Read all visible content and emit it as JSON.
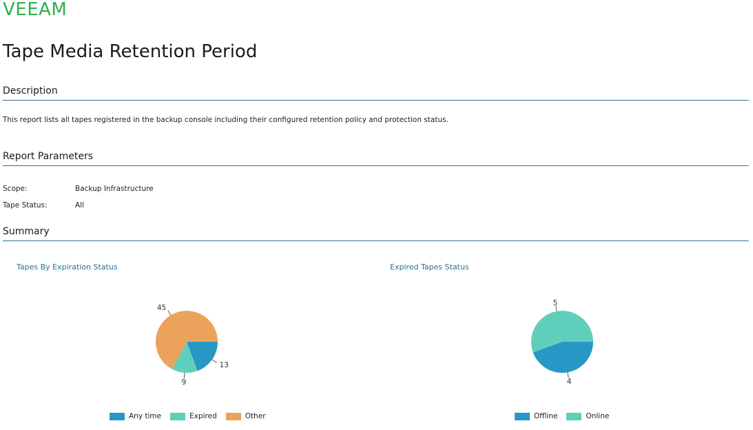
{
  "brand": {
    "logo_text": "VEEAM",
    "logo_color": "#2bb24c"
  },
  "report": {
    "title": "Tape Media Retention Period"
  },
  "sections": {
    "description": {
      "heading": "Description",
      "text": "This report lists all tapes registered in the backup console including their configured retention policy and protection status."
    },
    "parameters": {
      "heading": "Report Parameters",
      "items": [
        {
          "name": "Scope:",
          "value": "Backup Infrastructure"
        },
        {
          "name": "Tape Status:",
          "value": "All"
        }
      ]
    },
    "summary": {
      "heading": "Summary"
    }
  },
  "colors": {
    "anytime": "#2797c6",
    "expired": "#5fcfbc",
    "other": "#eba25a",
    "offline": "#2797c6",
    "online": "#5fcfbc"
  },
  "chart_data": [
    {
      "type": "pie",
      "title": "Tapes By Expiration Status",
      "slices": [
        {
          "label": "Any time",
          "value": 13,
          "color": "#2797c6"
        },
        {
          "label": "Expired",
          "value": 9,
          "color": "#5fcfbc"
        },
        {
          "label": "Other",
          "value": 45,
          "color": "#eba25a"
        }
      ],
      "legend": [
        "Any time",
        "Expired",
        "Other"
      ],
      "legend_placement": "bottom",
      "data_labels": [
        "13",
        "9",
        "45"
      ]
    },
    {
      "type": "pie",
      "title": "Expired Tapes Status",
      "slices": [
        {
          "label": "Offline",
          "value": 4,
          "color": "#2797c6"
        },
        {
          "label": "Online",
          "value": 5,
          "color": "#5fcfbc"
        }
      ],
      "legend": [
        "Offline",
        "Online"
      ],
      "legend_placement": "bottom",
      "data_labels": [
        "4",
        "5"
      ]
    }
  ]
}
